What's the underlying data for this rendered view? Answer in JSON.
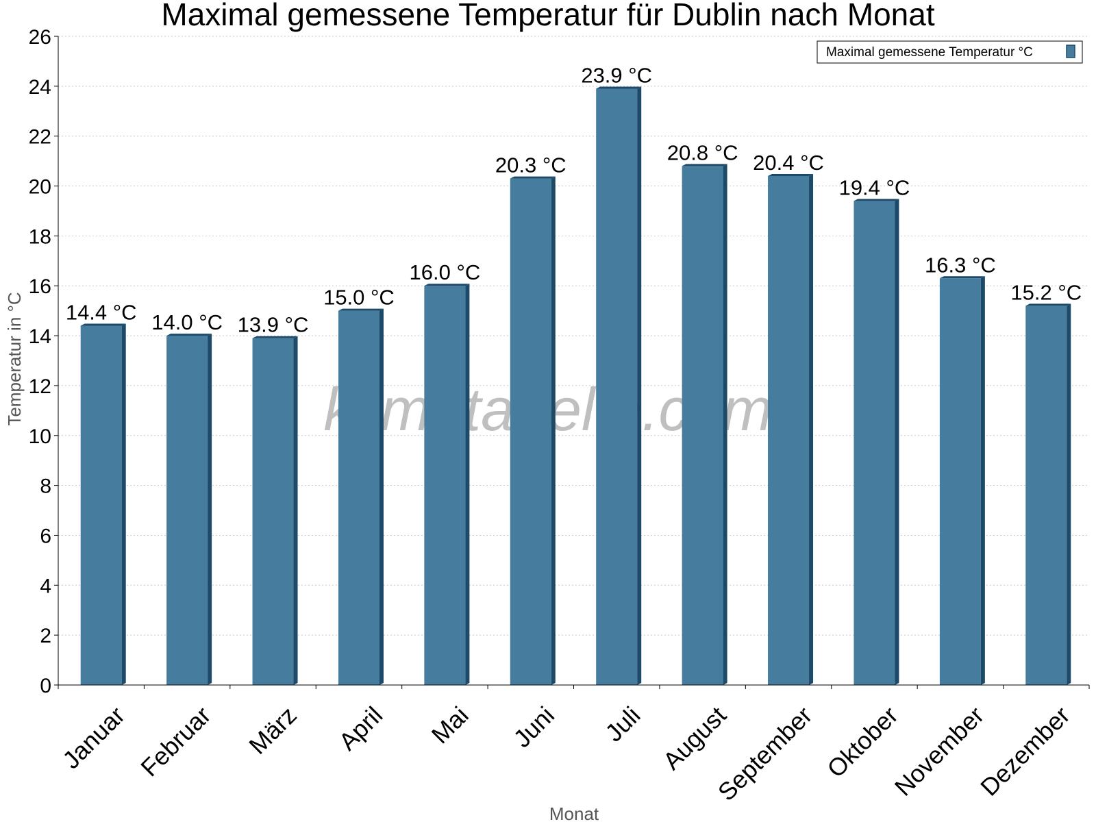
{
  "chart_data": {
    "type": "bar",
    "title": "Maximal gemessene Temperatur für Dublin nach Monat",
    "xlabel": "Monat",
    "ylabel": "Temperatur in °C",
    "categories": [
      "Januar",
      "Februar",
      "März",
      "April",
      "Mai",
      "Juni",
      "Juli",
      "August",
      "September",
      "Oktober",
      "November",
      "Dezember"
    ],
    "series": [
      {
        "name": "Maximal gemessene Temperatur °C",
        "values": [
          14.4,
          14.0,
          13.9,
          15.0,
          16.0,
          20.3,
          23.9,
          20.8,
          20.4,
          19.4,
          16.3,
          15.2
        ],
        "labels": [
          "14.4 °C",
          "14.0 °C",
          "13.9 °C",
          "15.0 °C",
          "16.0 °C",
          "20.3 °C",
          "23.9 °C",
          "20.8 °C",
          "20.4 °C",
          "19.4 °C",
          "16.3 °C",
          "15.2 °C"
        ],
        "color": "#467c9e",
        "shade_color": "#1e4a6a"
      }
    ],
    "ylim": [
      0,
      26
    ],
    "yticks": [
      0,
      2,
      4,
      6,
      8,
      10,
      12,
      14,
      16,
      18,
      20,
      22,
      24,
      26
    ],
    "grid": true,
    "legend_position": "top-right"
  },
  "watermark": "klimatabelle.com"
}
